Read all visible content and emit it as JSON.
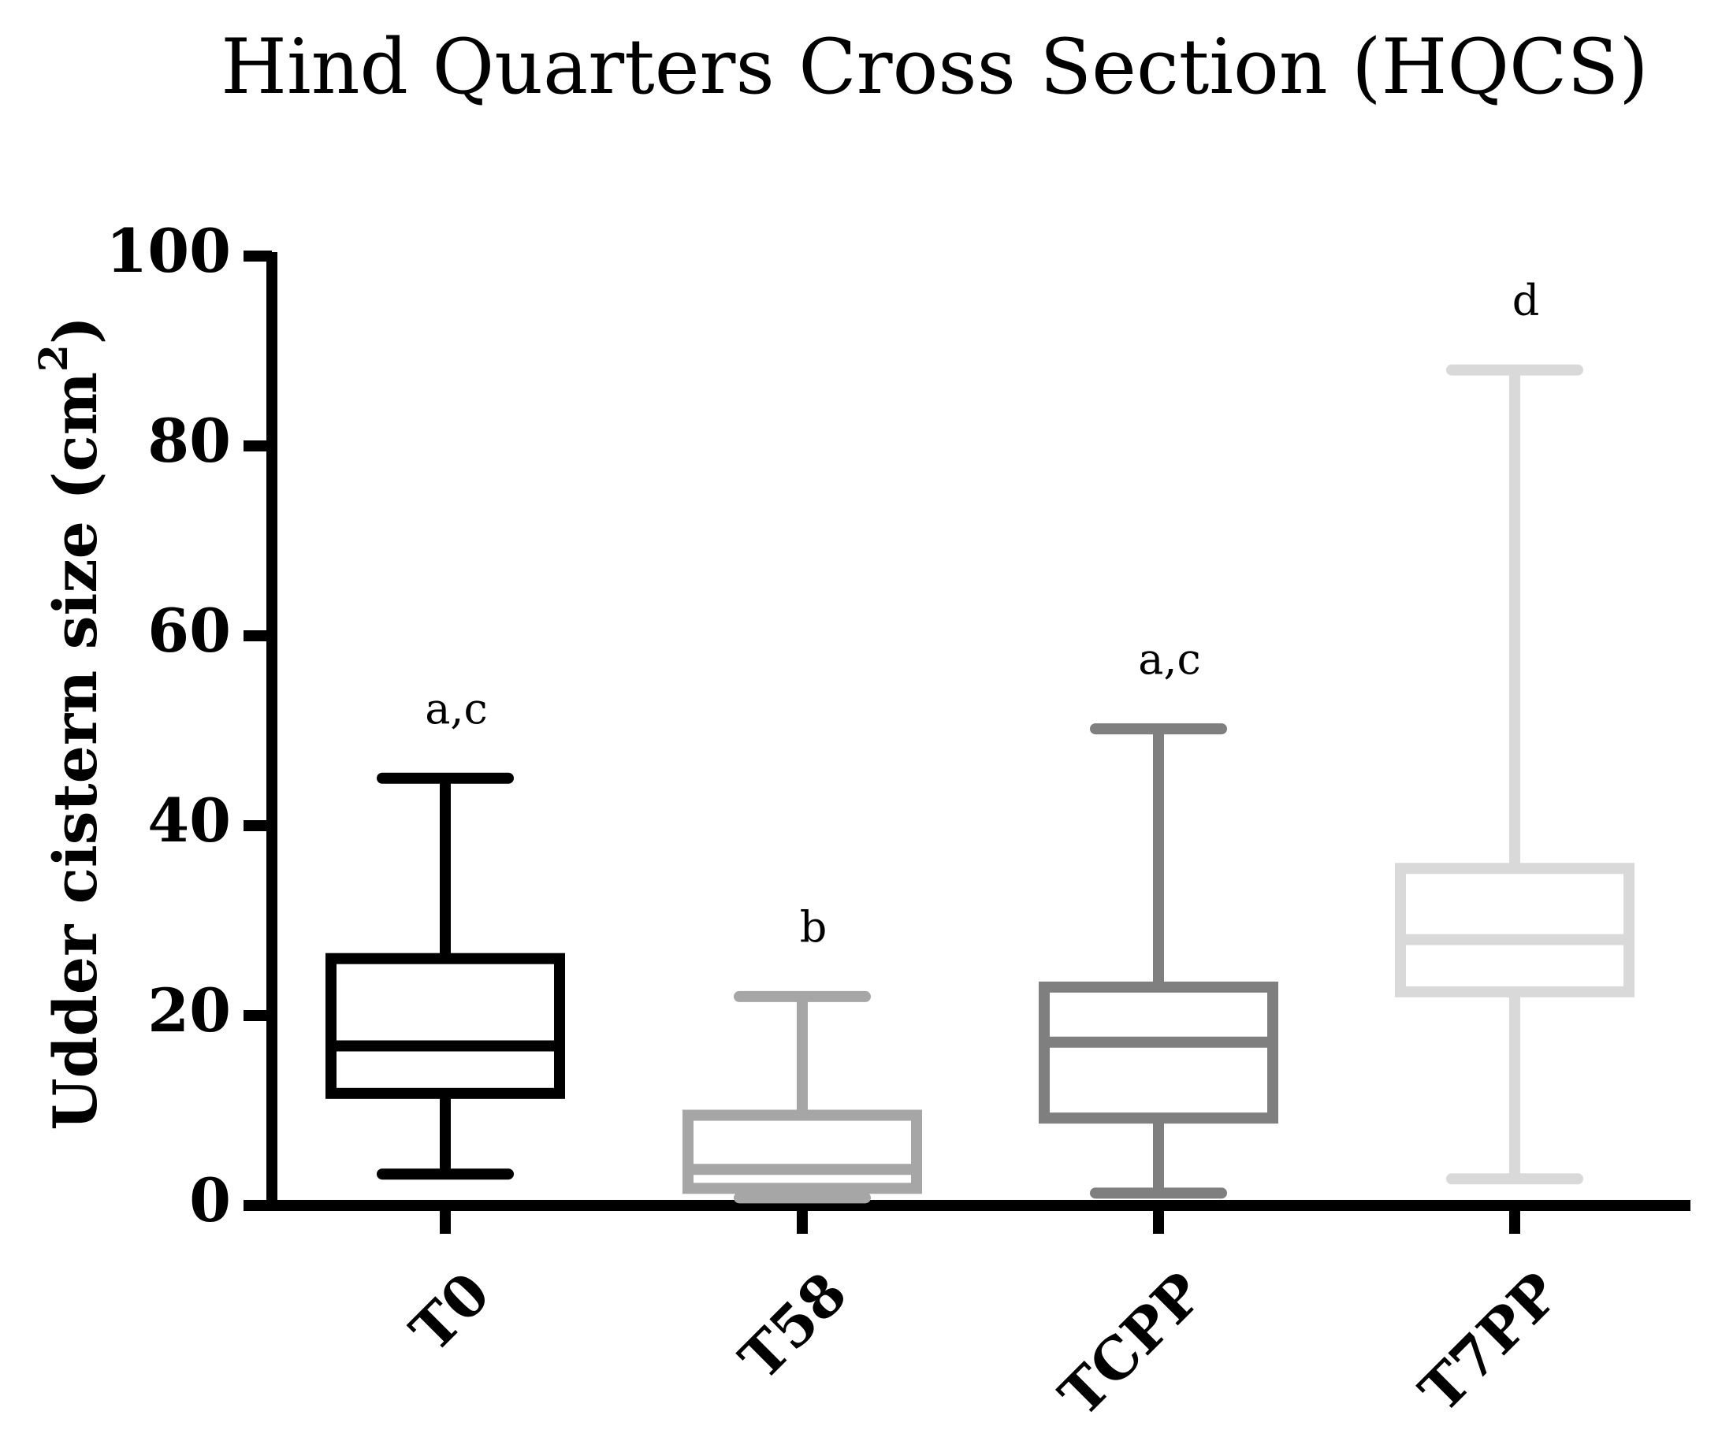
{
  "chart_data": {
    "type": "boxplot",
    "title": "Hind Quarters Cross Section (HQCS)",
    "xlabel": "",
    "ylabel_main": "Udder cistern size (cm",
    "ylabel_sup": "2",
    "ylabel_close": ")",
    "ylim": [
      0,
      100
    ],
    "yticks": [
      "0",
      "20",
      "40",
      "60",
      "80",
      "100"
    ],
    "grid": false,
    "categories": [
      "T0",
      "T58",
      "TCPP",
      "T7PP"
    ],
    "boxes": [
      {
        "category": "T0",
        "min": 3.3,
        "q1": 11.8,
        "median": 16.8,
        "q3": 26.0,
        "max": 45.0,
        "significance": "a,c",
        "color": "#000000"
      },
      {
        "category": "T58",
        "min": 0.8,
        "q1": 1.8,
        "median": 3.8,
        "q3": 9.5,
        "max": 22.0,
        "significance": "b",
        "color": "#a6a6a6"
      },
      {
        "category": "TCPP",
        "min": 1.3,
        "q1": 9.2,
        "median": 17.2,
        "q3": 23.0,
        "max": 50.2,
        "significance": "a,c",
        "color": "#7f7f7f"
      },
      {
        "category": "T7PP",
        "min": 2.8,
        "q1": 22.5,
        "median": 28.0,
        "q3": 35.5,
        "max": 88.0,
        "significance": "d",
        "color": "#d9d9d9"
      }
    ]
  }
}
